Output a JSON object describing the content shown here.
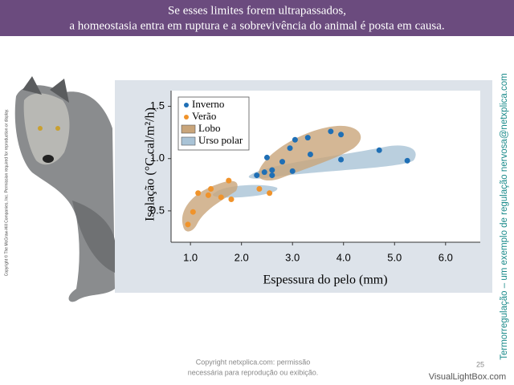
{
  "header": {
    "lines": [
      "Se esses limites forem ultrapassados,",
      "a homeostasia entra em ruptura e a sobrevivência do animal é posta em causa."
    ]
  },
  "side_text": "Termorregulação – um exemplo de regulação nervosa@netxplica.com",
  "side_copyright": "Copyright © The McGraw-Hill Companies, Inc. Permission required for reproduction or display.",
  "footer": {
    "lines": [
      "Copyright netxplica.com: permissão",
      "necessária para reprodução ou exibição."
    ],
    "page": "25",
    "brand": "VisualLightBox.com"
  },
  "chart_data": {
    "type": "scatter",
    "xlabel": "Espessura do pelo (mm)",
    "ylabel": "Isolação (°C cal/m²/h)",
    "xlim": [
      0.62,
      6.68
    ],
    "ylim": [
      0.2,
      1.65
    ],
    "xticks": [
      {
        "value": 1,
        "label": "1.0"
      },
      {
        "value": 2,
        "label": "2.0"
      },
      {
        "value": 3,
        "label": "3.0"
      },
      {
        "value": 4,
        "label": "4.0"
      },
      {
        "value": 5,
        "label": "5.0"
      },
      {
        "value": 6,
        "label": "6.0"
      }
    ],
    "yticks": [
      {
        "value": 0.5,
        "label": "0.5"
      },
      {
        "value": 1,
        "label": "1.0"
      },
      {
        "value": 1.5,
        "label": "1.5"
      }
    ],
    "series": [
      {
        "name": "Inverno",
        "color": "#1f6fb5",
        "x": [
          2.3,
          2.45,
          2.5,
          2.6,
          2.6,
          2.8,
          2.95,
          3.05,
          3.3,
          3.35,
          3.0,
          3.75,
          3.95,
          3.95,
          4.7,
          5.25
        ],
        "values": [
          0.84,
          0.87,
          1.01,
          0.89,
          0.84,
          0.97,
          1.1,
          1.18,
          1.2,
          1.04,
          0.88,
          1.26,
          1.23,
          0.99,
          1.08,
          0.98
        ]
      },
      {
        "name": "Verão",
        "color": "#f0932b",
        "x": [
          0.95,
          1.05,
          1.15,
          1.35,
          1.4,
          1.6,
          1.75,
          1.8,
          2.35,
          2.55
        ],
        "values": [
          0.37,
          0.49,
          0.67,
          0.65,
          0.71,
          0.63,
          0.79,
          0.61,
          0.71,
          0.67
        ]
      }
    ],
    "regions": [
      {
        "name": "Lobo",
        "color": "#c9a57a"
      },
      {
        "name": "Urso polar",
        "color": "#a9c3d6"
      }
    ]
  }
}
